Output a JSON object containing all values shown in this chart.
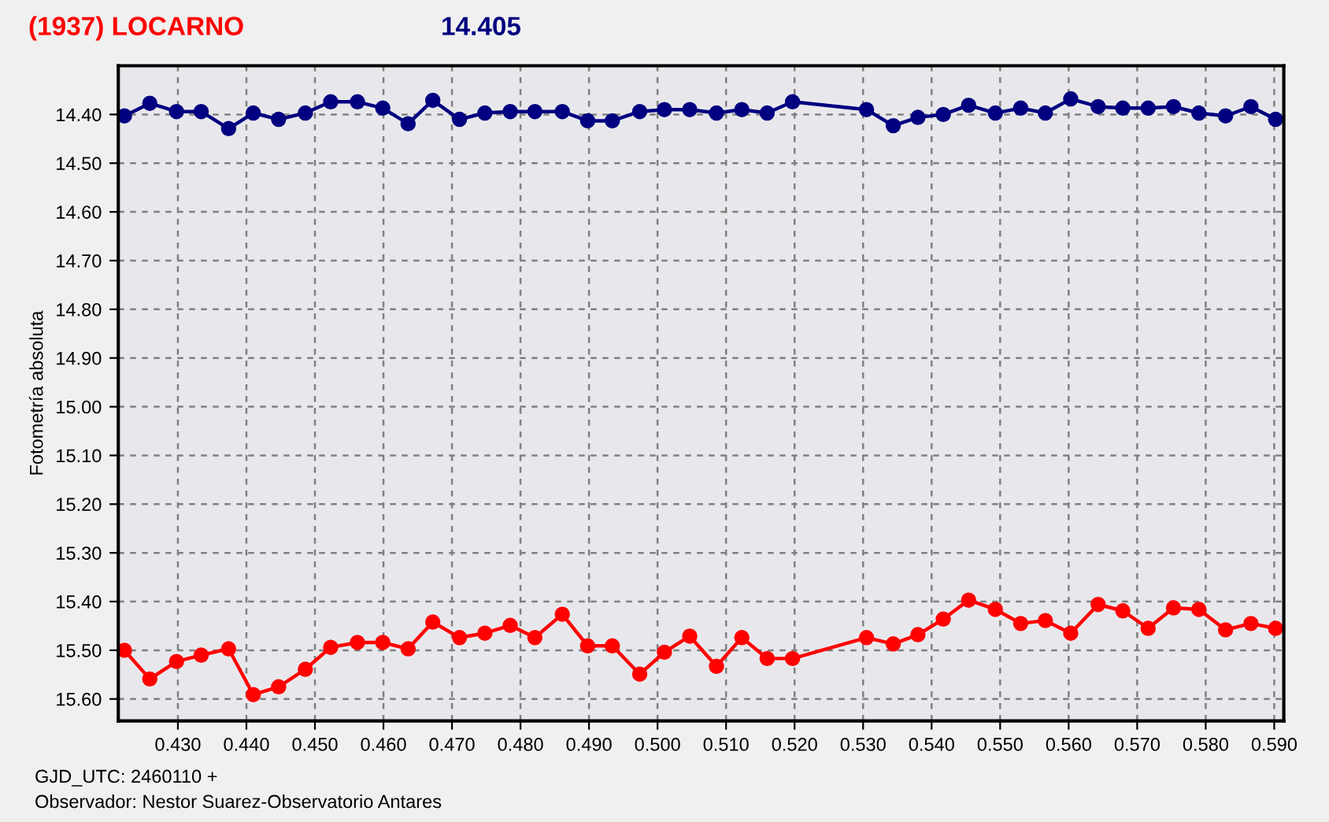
{
  "chart_data": {
    "type": "line",
    "title": "(1937) LOCARNO",
    "ylabel": "Fotometría absoluta",
    "annotations": [
      "14.405",
      "GJD_UTC: 2460110 +",
      "Observador: Nestor Suarez-Observatorio Antares"
    ],
    "x": [
      0.4222,
      0.4259,
      0.4298,
      0.4334,
      0.4374,
      0.441,
      0.4447,
      0.4486,
      0.4523,
      0.4562,
      0.4599,
      0.4636,
      0.4672,
      0.4711,
      0.4748,
      0.4785,
      0.4821,
      0.4861,
      0.4898,
      0.4934,
      0.4974,
      0.501,
      0.5047,
      0.5086,
      0.5123,
      0.516,
      0.5197,
      0.5305,
      0.5344,
      0.538,
      0.5417,
      0.5454,
      0.5493,
      0.553,
      0.5566,
      0.5603,
      0.5643,
      0.5679,
      0.5716,
      0.5753,
      0.579,
      0.5829,
      0.5866,
      0.5902
    ],
    "series": [
      {
        "color": "#000080",
        "values": [
          14.403,
          14.377,
          14.394,
          14.394,
          14.429,
          14.397,
          14.41,
          14.397,
          14.374,
          14.374,
          14.387,
          14.419,
          14.371,
          14.41,
          14.397,
          14.394,
          14.394,
          14.394,
          14.413,
          14.413,
          14.394,
          14.39,
          14.39,
          14.397,
          14.39,
          14.397,
          14.374,
          14.39,
          14.423,
          14.406,
          14.4,
          14.381,
          14.397,
          14.387,
          14.397,
          14.368,
          14.384,
          14.387,
          14.387,
          14.384,
          14.397,
          14.403,
          14.384,
          14.41
        ]
      },
      {
        "color": "#ff0000",
        "values": [
          15.5,
          15.559,
          15.523,
          15.51,
          15.497,
          15.591,
          15.575,
          15.539,
          15.494,
          15.484,
          15.484,
          15.497,
          15.442,
          15.474,
          15.465,
          15.449,
          15.474,
          15.426,
          15.491,
          15.491,
          15.549,
          15.504,
          15.471,
          15.533,
          15.474,
          15.517,
          15.517,
          15.474,
          15.487,
          15.468,
          15.436,
          15.397,
          15.416,
          15.445,
          15.439,
          15.465,
          15.406,
          15.419,
          15.455,
          15.413,
          15.416,
          15.458,
          15.445,
          15.455
        ]
      }
    ],
    "xlim": [
      0.4213,
      0.5914
    ],
    "xticks": [
      {
        "value": 0.43,
        "label": "0.430"
      },
      {
        "value": 0.44,
        "label": "0.440"
      },
      {
        "value": 0.45,
        "label": "0.450"
      },
      {
        "value": 0.46,
        "label": "0.460"
      },
      {
        "value": 0.47,
        "label": "0.470"
      },
      {
        "value": 0.48,
        "label": "0.480"
      },
      {
        "value": 0.49,
        "label": "0.490"
      },
      {
        "value": 0.5,
        "label": "0.500"
      },
      {
        "value": 0.51,
        "label": "0.510"
      },
      {
        "value": 0.52,
        "label": "0.520"
      },
      {
        "value": 0.53,
        "label": "0.530"
      },
      {
        "value": 0.54,
        "label": "0.540"
      },
      {
        "value": 0.55,
        "label": "0.550"
      },
      {
        "value": 0.56,
        "label": "0.560"
      },
      {
        "value": 0.57,
        "label": "0.570"
      },
      {
        "value": 0.58,
        "label": "0.580"
      },
      {
        "value": 0.59,
        "label": "0.590"
      }
    ],
    "ylim": [
      15.645,
      14.3
    ],
    "yticks": [
      {
        "value": 14.4,
        "label": "14.40"
      },
      {
        "value": 14.5,
        "label": "14.50"
      },
      {
        "value": 14.6,
        "label": "14.60"
      },
      {
        "value": 14.7,
        "label": "14.70"
      },
      {
        "value": 14.8,
        "label": "14.80"
      },
      {
        "value": 14.9,
        "label": "14.90"
      },
      {
        "value": 15.0,
        "label": "15.00"
      },
      {
        "value": 15.1,
        "label": "15.10"
      },
      {
        "value": 15.2,
        "label": "15.20"
      },
      {
        "value": 15.3,
        "label": "15.30"
      },
      {
        "value": 15.4,
        "label": "15.40"
      },
      {
        "value": 15.5,
        "label": "15.50"
      },
      {
        "value": 15.6,
        "label": "15.60"
      }
    ],
    "grid": true,
    "marker": "circle",
    "line_style": "solid",
    "legend": false
  }
}
